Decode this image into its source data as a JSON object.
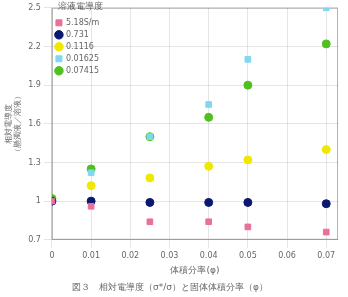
{
  "chart_data": {
    "type": "scatter",
    "title": "溶液電導度",
    "xlabel": "体積分率(φ)",
    "ylabel": [
      "相対電導度",
      "（懸濁液／溶液）"
    ],
    "caption": "図３　相対電導度（σ*/σ）と固体体積分率（φ）",
    "xlim": [
      0,
      0.073
    ],
    "xticks": [
      0,
      0.01,
      0.02,
      0.03,
      0.04,
      0.05,
      0.06,
      0.07
    ],
    "ylim": [
      0.7,
      2.5
    ],
    "yticks": [
      0.7,
      1.0,
      1.3,
      1.6,
      1.9,
      2.2,
      2.5
    ],
    "grid": true,
    "legend": "upper left",
    "series": [
      {
        "name": "5.18S/m",
        "marker": "square",
        "color": "#e8709a",
        "x": [
          0.0,
          0.01,
          0.025,
          0.04,
          0.05,
          0.07
        ],
        "values": [
          1.0,
          0.96,
          0.84,
          0.84,
          0.8,
          0.76
        ]
      },
      {
        "name": "0.731",
        "marker": "circle",
        "color": "#0a1870",
        "x": [
          0.0,
          0.01,
          0.025,
          0.04,
          0.05,
          0.07
        ],
        "values": [
          1.0,
          1.0,
          0.99,
          0.99,
          0.99,
          0.98
        ]
      },
      {
        "name": "0.1116",
        "marker": "circle",
        "color": "#f0e800",
        "x": [
          0.01,
          0.025,
          0.04,
          0.05,
          0.07
        ],
        "values": [
          1.12,
          1.18,
          1.27,
          1.32,
          1.4
        ]
      },
      {
        "name": "0.01625",
        "marker": "square",
        "color": "#80d8f0",
        "x": [
          0.0,
          0.01,
          0.025,
          0.04,
          0.05,
          0.07
        ],
        "values": [
          1.0,
          1.22,
          1.5,
          1.75,
          2.1,
          2.5
        ]
      },
      {
        "name": "0.07415",
        "marker": "circle",
        "color": "#50c020",
        "x": [
          0.0,
          0.01,
          0.025,
          0.04,
          0.05,
          0.07
        ],
        "values": [
          1.02,
          1.25,
          1.5,
          1.65,
          1.9,
          2.22
        ]
      }
    ]
  }
}
